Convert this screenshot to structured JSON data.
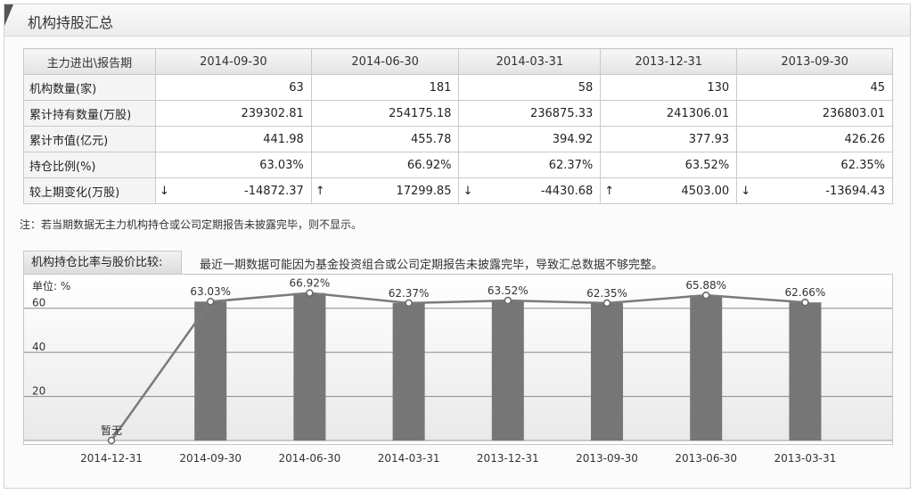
{
  "header": {
    "title": "机构持股汇总"
  },
  "table": {
    "corner_header": "主力进出\\报告期",
    "periods": [
      "2014-09-30",
      "2014-06-30",
      "2014-03-31",
      "2013-12-31",
      "2013-09-30"
    ],
    "rows": [
      {
        "label": "机构数量(家)",
        "values": [
          "63",
          "181",
          "58",
          "130",
          "45"
        ]
      },
      {
        "label": "累计持有数量(万股)",
        "values": [
          "239302.81",
          "254175.18",
          "236875.33",
          "241306.01",
          "236803.01"
        ]
      },
      {
        "label": "累计市值(亿元)",
        "values": [
          "441.98",
          "455.78",
          "394.92",
          "377.93",
          "426.26"
        ]
      },
      {
        "label": "持仓比例(%)",
        "values": [
          "63.03%",
          "66.92%",
          "62.37%",
          "63.52%",
          "62.35%"
        ]
      },
      {
        "label": "较上期变化(万股)",
        "values": [
          "-14872.37",
          "17299.85",
          "-4430.68",
          "4503.00",
          "-13694.43"
        ],
        "arrows": [
          "down-arrow-icon",
          "up-arrow-icon",
          "down-arrow-icon",
          "up-arrow-icon",
          "down-arrow-icon"
        ]
      }
    ]
  },
  "note": "注：若当期数据无主力机构持仓或公司定期报告未披露完毕，则不显示。",
  "chart_section": {
    "tab_label": "机构持仓比率与股价比较:",
    "description": "最近一期数据可能因为基金投资组合或公司定期报告未披露完毕，导致汇总数据不够完整。"
  },
  "chart_data": {
    "type": "bar",
    "unit_label": "单位: %",
    "categories": [
      "2014-12-31",
      "2014-09-30",
      "2014-06-30",
      "2014-03-31",
      "2013-12-31",
      "2013-09-30",
      "2013-06-30",
      "2013-03-31"
    ],
    "bar_values": [
      null,
      63.03,
      66.92,
      62.37,
      63.52,
      62.35,
      65.88,
      62.66
    ],
    "line_values": [
      0,
      63.03,
      66.92,
      62.37,
      63.52,
      62.35,
      65.88,
      62.66
    ],
    "data_labels": [
      "暂无",
      "63.03%",
      "66.92%",
      "62.37%",
      "63.52%",
      "62.35%",
      "65.88%",
      "62.66%"
    ],
    "y_ticks": [
      20,
      40,
      60
    ],
    "ylim": [
      0,
      70
    ],
    "grid": true,
    "colors": {
      "bar": "#767676",
      "line": "#7a7a7a",
      "marker_fill": "#ffffff",
      "marker_stroke": "#666666",
      "grid": "#8a8a8a"
    }
  },
  "icons": {
    "up": "↑",
    "down": "↓"
  }
}
